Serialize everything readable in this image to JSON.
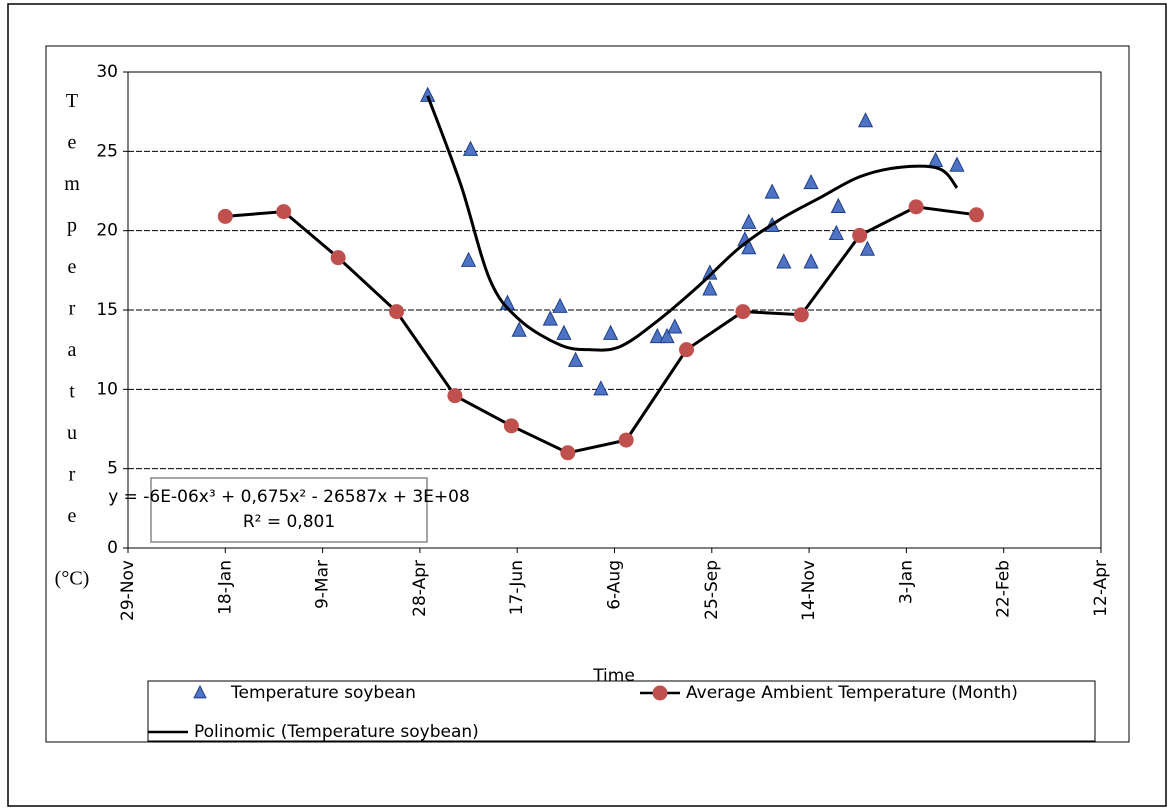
{
  "chart_data": {
    "type": "scatter",
    "x_label": "Time",
    "y_label": "Temperature",
    "y_unit": "(°C)",
    "annotations": [
      "y = -6E-06x³ + 0,675x² - 26587x + 3E+08",
      "R² = 0,801"
    ],
    "xlim": [
      0,
      500
    ],
    "xticks": [
      {
        "value": 0,
        "label": "29-Nov"
      },
      {
        "value": 50,
        "label": "18-Jan"
      },
      {
        "value": 100,
        "label": "9-Mar"
      },
      {
        "value": 150,
        "label": "28-Apr"
      },
      {
        "value": 200,
        "label": "17-Jun"
      },
      {
        "value": 250,
        "label": "6-Aug"
      },
      {
        "value": 300,
        "label": "25-Sep"
      },
      {
        "value": 350,
        "label": "14-Nov"
      },
      {
        "value": 400,
        "label": "3-Jan"
      },
      {
        "value": 450,
        "label": "22-Feb"
      },
      {
        "value": 500,
        "label": "12-Apr"
      }
    ],
    "ylim": [
      0,
      30
    ],
    "yticks": [
      0,
      5,
      10,
      15,
      20,
      25,
      30
    ],
    "grid": true,
    "series": [
      {
        "name": "Temperature soybean",
        "color": "#4f73c4",
        "marker": "triangle",
        "x": [
          154,
          176,
          175,
          195,
          201,
          217,
          222,
          224,
          230,
          243,
          248,
          272,
          277,
          281,
          299,
          299,
          317,
          319,
          319,
          331,
          331,
          337,
          351,
          351,
          365,
          364,
          379,
          380,
          415,
          426
        ],
        "values": [
          28.5,
          25.1,
          18.1,
          15.4,
          13.7,
          14.4,
          15.2,
          13.5,
          11.8,
          10.0,
          13.5,
          13.3,
          13.3,
          13.9,
          16.3,
          17.3,
          19.4,
          20.5,
          18.9,
          20.3,
          22.4,
          18.0,
          23.0,
          18.0,
          21.5,
          19.8,
          26.9,
          18.8,
          24.4,
          24.1
        ]
      },
      {
        "name": "Average Ambient Temperature (Month)",
        "color": "#c0504d",
        "marker": "circle-line",
        "x": [
          50,
          80,
          108,
          138,
          168,
          197,
          226,
          256,
          287,
          316,
          346,
          376,
          405,
          436
        ],
        "values": [
          20.9,
          21.2,
          18.3,
          14.9,
          9.6,
          7.7,
          6.0,
          6.8,
          12.5,
          14.9,
          14.7,
          19.7,
          21.5,
          21.0
        ]
      },
      {
        "name": "Polinomic (Temperature soybean)",
        "color": "#000000",
        "marker": "curve",
        "x": [
          154,
          171,
          186,
          201,
          222,
          237,
          253,
          273,
          294,
          314,
          335,
          356,
          376,
          397,
          417,
          426
        ],
        "values": [
          28.5,
          22.9,
          16.9,
          14.4,
          12.8,
          12.5,
          12.7,
          14.4,
          16.6,
          18.9,
          20.7,
          22.1,
          23.4,
          24.0,
          23.9,
          22.7
        ]
      }
    ]
  }
}
